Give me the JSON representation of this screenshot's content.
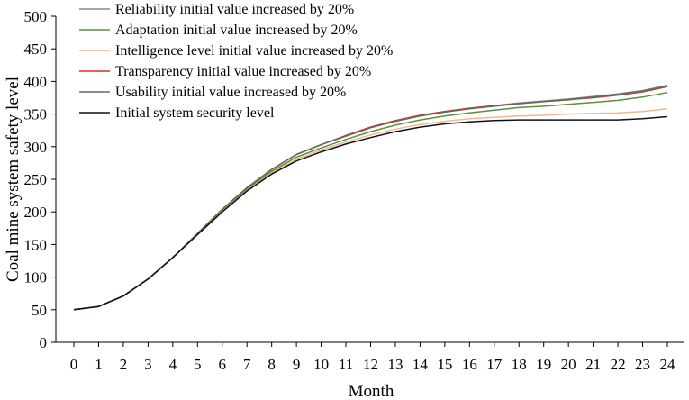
{
  "chart_data": {
    "type": "line",
    "title": "",
    "xlabel": "Month",
    "ylabel": "Coal mine system safety level",
    "xlim": [
      0,
      24
    ],
    "ylim": [
      0,
      500
    ],
    "x_ticks": [
      0,
      1,
      2,
      3,
      4,
      5,
      6,
      7,
      8,
      9,
      10,
      11,
      12,
      13,
      14,
      15,
      16,
      17,
      18,
      19,
      20,
      21,
      22,
      23,
      24
    ],
    "y_ticks": [
      0,
      50,
      100,
      150,
      200,
      250,
      300,
      350,
      400,
      450,
      500
    ],
    "grid": false,
    "legend_position": "top-left",
    "x": [
      0,
      1,
      2,
      3,
      4,
      5,
      6,
      7,
      8,
      9,
      10,
      11,
      12,
      13,
      14,
      15,
      16,
      17,
      18,
      19,
      20,
      21,
      22,
      23,
      24
    ],
    "series": [
      {
        "name": "Reliability initial value increased by 20%",
        "color": "#8a8a8a",
        "values": [
          50,
          55,
          71,
          97,
          130,
          167,
          204,
          237,
          265,
          288,
          303,
          317,
          330,
          340,
          348,
          354,
          359,
          363,
          367,
          370,
          373,
          377,
          381,
          386,
          394
        ]
      },
      {
        "name": "Adaptation initial value increased by 20%",
        "color": "#5b8f3c",
        "values": [
          50,
          55,
          71,
          97,
          130,
          166,
          202,
          235,
          262,
          284,
          298,
          311,
          323,
          333,
          341,
          347,
          352,
          356,
          360,
          362,
          365,
          368,
          371,
          376,
          383
        ]
      },
      {
        "name": "Intelligence level initial value increased by 20%",
        "color": "#f2b78c",
        "values": [
          50,
          55,
          71,
          97,
          130,
          166,
          201,
          233,
          260,
          281,
          295,
          307,
          318,
          327,
          334,
          339,
          343,
          345,
          347,
          348,
          350,
          351,
          352,
          354,
          358
        ]
      },
      {
        "name": "Transparency initial value increased by 20%",
        "color": "#e0262f",
        "values": [
          50,
          55,
          71,
          97,
          130,
          167,
          204,
          237,
          265,
          288,
          303,
          317,
          330,
          340,
          348,
          354,
          359,
          363,
          366,
          369,
          372,
          375,
          379,
          384,
          392
        ]
      },
      {
        "name": "Usability initial value increased by 20%",
        "color": "#5d6f5d",
        "values": [
          50,
          55,
          71,
          97,
          130,
          167,
          204,
          237,
          265,
          288,
          303,
          316,
          329,
          339,
          347,
          353,
          358,
          362,
          366,
          369,
          372,
          376,
          380,
          385,
          393
        ]
      },
      {
        "name": "Initial system security level",
        "color": "#111111",
        "values": [
          50,
          55,
          71,
          97,
          130,
          165,
          200,
          232,
          258,
          278,
          292,
          304,
          314,
          323,
          330,
          335,
          338,
          340,
          341,
          341,
          341,
          341,
          341,
          343,
          346
        ]
      }
    ]
  }
}
